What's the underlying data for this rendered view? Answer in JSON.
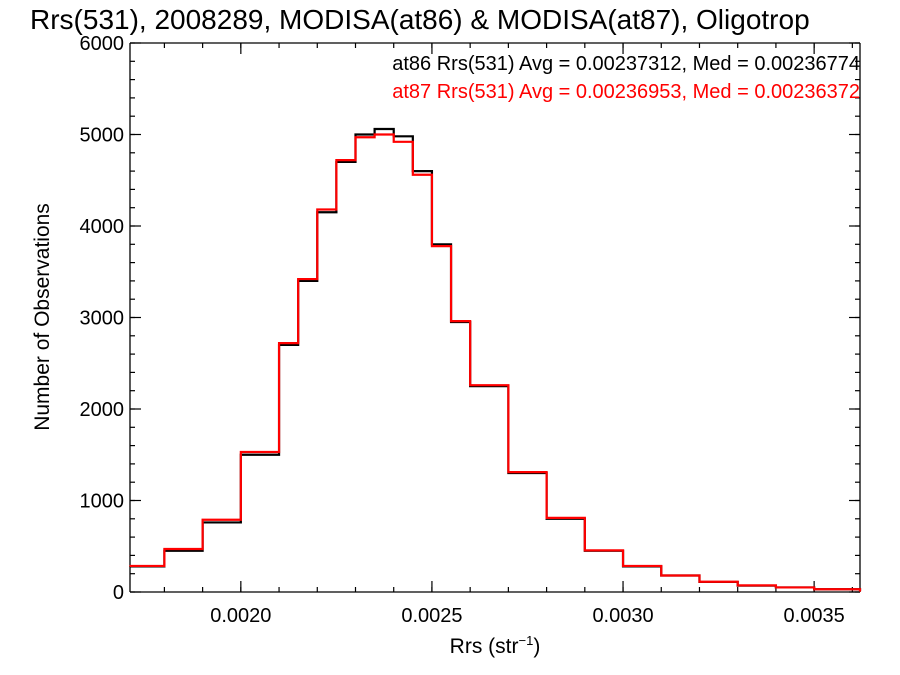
{
  "chart_data": {
    "type": "line",
    "step": true,
    "title": "Rrs(531), 2008289, MODISA(at86) & MODISA(at87), Oligotrop",
    "xlabel_base": "Rrs (str",
    "xlabel_sup": "−1",
    "xlabel_close": ")",
    "ylabel": "Number of Observations",
    "xlim": [
      0.00171,
      0.00362
    ],
    "ylim": [
      0,
      6000
    ],
    "grid": false,
    "x_ticks": [
      0.002,
      0.0025,
      0.003,
      0.0035
    ],
    "x_tick_labels": [
      "0.0020",
      "0.0025",
      "0.0030",
      "0.0035"
    ],
    "y_ticks": [
      0,
      1000,
      2000,
      3000,
      4000,
      5000,
      6000
    ],
    "y_tick_labels": [
      "0",
      "1000",
      "2000",
      "3000",
      "4000",
      "5000",
      "6000"
    ],
    "legend_position": "top-right",
    "series": [
      {
        "name": "at86",
        "color": "#000000",
        "stats_text": "at86 Rrs(531) Avg = 0.00237312, Med = 0.00236774",
        "x": [
          0.00171,
          0.0018,
          0.0019,
          0.002,
          0.0021,
          0.00215,
          0.0022,
          0.00225,
          0.0023,
          0.00235,
          0.0024,
          0.00245,
          0.0025,
          0.00255,
          0.0026,
          0.0027,
          0.0028,
          0.0029,
          0.003,
          0.0031,
          0.0032,
          0.0033,
          0.0034,
          0.0035,
          0.00362
        ],
        "y": [
          280,
          450,
          760,
          1500,
          2700,
          3400,
          4150,
          4700,
          5000,
          5060,
          4980,
          4600,
          3800,
          2950,
          2250,
          1300,
          800,
          450,
          280,
          180,
          110,
          70,
          50,
          30,
          10
        ]
      },
      {
        "name": "at87",
        "color": "#ff0000",
        "stats_text": "at87 Rrs(531) Avg = 0.00236953, Med = 0.00236372",
        "x": [
          0.00171,
          0.0018,
          0.0019,
          0.002,
          0.0021,
          0.00215,
          0.0022,
          0.00225,
          0.0023,
          0.00235,
          0.0024,
          0.00245,
          0.0025,
          0.00255,
          0.0026,
          0.0027,
          0.0028,
          0.0029,
          0.003,
          0.0031,
          0.0032,
          0.0033,
          0.0034,
          0.0035,
          0.00362
        ],
        "y": [
          285,
          470,
          790,
          1530,
          2720,
          3420,
          4180,
          4720,
          4970,
          5000,
          4920,
          4560,
          3780,
          2960,
          2260,
          1310,
          810,
          455,
          285,
          180,
          112,
          72,
          50,
          30,
          10
        ]
      }
    ]
  }
}
